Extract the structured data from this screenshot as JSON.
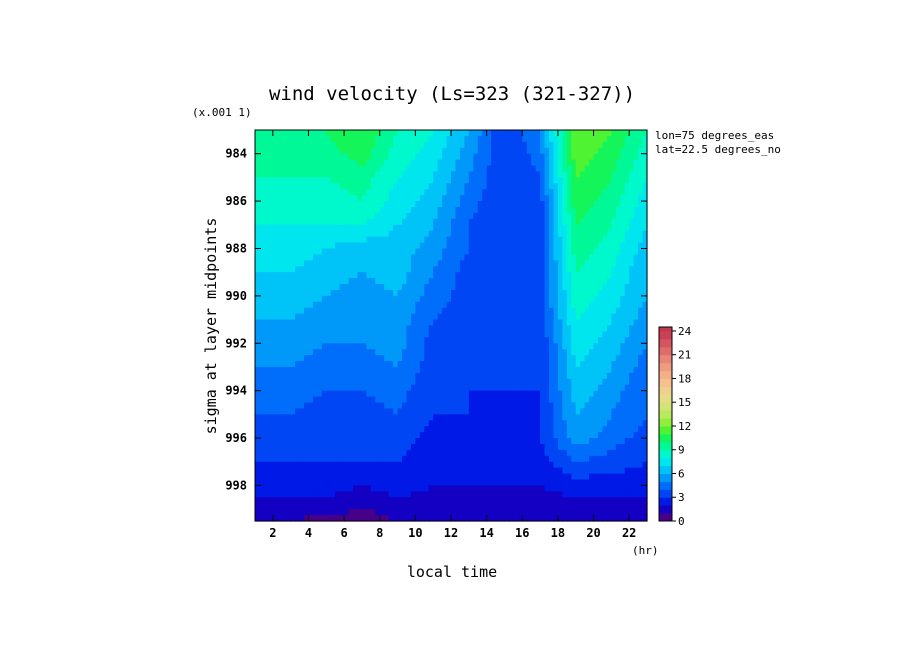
{
  "chart_data": {
    "type": "heatmap",
    "subtype": "filled-contour",
    "title": "wind velocity (Ls=323 (321-327))",
    "xlabel": "local time",
    "x_unit": "(hr)",
    "ylabel": "sigma at layer midpoints",
    "y_multiplier": "(x.001 1)",
    "annotations": [
      "lon=75 degrees_eas",
      "lat=22.5 degrees_no"
    ],
    "x_ticks": [
      2,
      4,
      6,
      8,
      10,
      12,
      14,
      16,
      18,
      20,
      22
    ],
    "y_ticks": [
      984,
      986,
      988,
      990,
      992,
      994,
      996,
      998
    ],
    "xlim": [
      1,
      23
    ],
    "ylim": [
      983,
      999.5
    ],
    "y_reversed": true,
    "grid": false,
    "colorbar": {
      "ticks": [
        0,
        3,
        6,
        9,
        12,
        15,
        18,
        21,
        24
      ],
      "range": [
        0,
        24.5
      ],
      "step": 1,
      "position": "right"
    },
    "x": [
      1,
      3,
      5,
      7,
      9,
      11,
      13,
      15,
      17,
      19,
      21,
      23
    ],
    "y": [
      983,
      984,
      985,
      986,
      987,
      988,
      989,
      990,
      991,
      992,
      993,
      994,
      995,
      996,
      997,
      998,
      999,
      999.5
    ],
    "z": [
      [
        10,
        10,
        10,
        11,
        9,
        8,
        6,
        3,
        5,
        12,
        11,
        9
      ],
      [
        9.5,
        9.5,
        9.5,
        10.5,
        8.5,
        7.5,
        5.5,
        3,
        4.5,
        11.5,
        10.5,
        8.5
      ],
      [
        9,
        9,
        9,
        9.5,
        8,
        7,
        5,
        3,
        4,
        11,
        10,
        8
      ],
      [
        8.5,
        8.5,
        8.5,
        9,
        7.5,
        6.5,
        4.5,
        3,
        3.5,
        10.5,
        9.5,
        7.5
      ],
      [
        8,
        8,
        8,
        8,
        7,
        6,
        4,
        3,
        3.5,
        10,
        9,
        7
      ],
      [
        7.5,
        7.5,
        7,
        6.5,
        6.5,
        5.5,
        4,
        3,
        3.5,
        9.5,
        8.5,
        6.5
      ],
      [
        7,
        7,
        6.5,
        6,
        6.5,
        5,
        3.5,
        3,
        3.5,
        9,
        8,
        6
      ],
      [
        6.5,
        6.5,
        6,
        5.5,
        6,
        4.5,
        3.5,
        3,
        3.5,
        8.5,
        7.5,
        6
      ],
      [
        6,
        6,
        5.5,
        5,
        5.5,
        4,
        3.5,
        3,
        3.5,
        8,
        7,
        5.5
      ],
      [
        5.5,
        5.5,
        5,
        5,
        5.5,
        3.5,
        3.5,
        3,
        3,
        7.5,
        6.5,
        5
      ],
      [
        5,
        5,
        4.5,
        4.5,
        5,
        3.5,
        3,
        3,
        3,
        7,
        6,
        4.5
      ],
      [
        4.5,
        4.5,
        4,
        4,
        4.5,
        3,
        3,
        3,
        3,
        6.5,
        5.5,
        4
      ],
      [
        4,
        4,
        3.5,
        3.5,
        4,
        3,
        3,
        2.5,
        3,
        6,
        5,
        4
      ],
      [
        3.5,
        3.5,
        3,
        3,
        3.5,
        2.5,
        2.5,
        2.5,
        3,
        5.5,
        4.5,
        3.5
      ],
      [
        3,
        3,
        3,
        3,
        3,
        2.5,
        2.5,
        2.5,
        2.5,
        4,
        3.5,
        3
      ],
      [
        2.5,
        2.5,
        2.5,
        2,
        2.5,
        2,
        2,
        2,
        2,
        2.5,
        2.5,
        2.5
      ],
      [
        1.5,
        1.5,
        1.5,
        1,
        1.5,
        1.5,
        1.5,
        1.5,
        1.5,
        1.5,
        1.5,
        1.5
      ],
      [
        1,
        1,
        0.5,
        0.3,
        1,
        1,
        1,
        1,
        1,
        1,
        1,
        1
      ]
    ]
  }
}
